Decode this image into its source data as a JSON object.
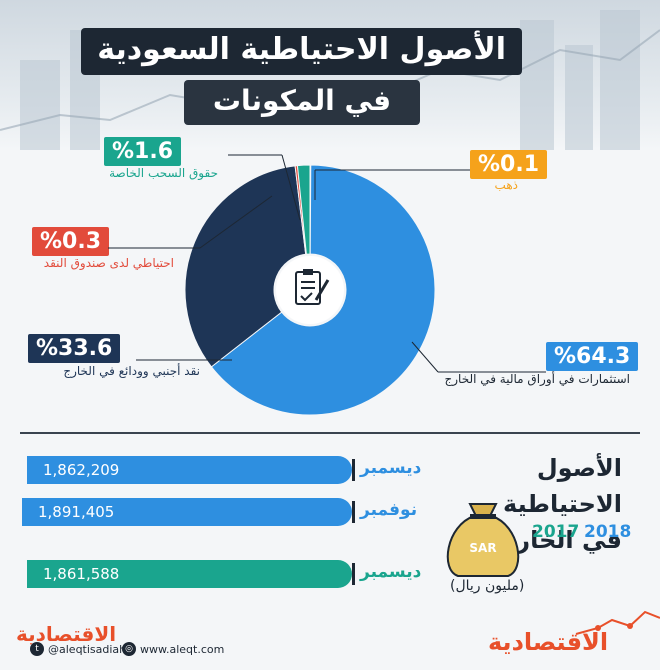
{
  "header": {
    "title": "الأصول الاحتياطية السعودية",
    "subtitle": "في المكونات"
  },
  "chart_data": [
    {
      "type": "pie",
      "title": "الأصول الاحتياطية السعودية",
      "subtitle": "في المكونات",
      "unit": "%",
      "slices": [
        {
          "label": "استثمارات في أوراق مالية في الخارج",
          "value": 64.3,
          "display": "%64.3",
          "color": "#2e8fe0"
        },
        {
          "label": "نقد أجنبي وودائع في الخارج",
          "value": 33.6,
          "display": "%33.6",
          "color": "#1e3556"
        },
        {
          "label": "احتياطي لدى صندوق النقد",
          "value": 0.3,
          "display": "%0.3",
          "color": "#e24b3b"
        },
        {
          "label": "حقوق السحب الخاصة",
          "value": 1.6,
          "display": "%1.6",
          "color": "#1aa58e"
        },
        {
          "label": "ذهب",
          "value": 0.1,
          "display": "%0.1",
          "color": "#f5a21b"
        }
      ]
    },
    {
      "type": "bar",
      "title": "الأصول الاحتياطية في الخارج",
      "unit": "(مليون ريال)",
      "legend": [
        {
          "year": "2018",
          "color": "#2e8fe0"
        },
        {
          "year": "2017",
          "color": "#1aa58e"
        }
      ],
      "bars": [
        {
          "month": "ديسمبر",
          "year": "2018",
          "value": 1862209,
          "display": "1,862,209",
          "color": "#2e8fe0"
        },
        {
          "month": "نوفمبر",
          "year": "2018",
          "value": 1891405,
          "display": "1,891,405",
          "color": "#2e8fe0"
        },
        {
          "month": "ديسمبر",
          "year": "2017",
          "value": 1861588,
          "display": "1,861,588",
          "color": "#1aa58e"
        }
      ]
    }
  ],
  "side": {
    "title_line1": "الأصول الاحتياطية",
    "title_line2": "في الخارج",
    "year_2018": "2018",
    "year_2017": "2017",
    "unit": "(مليون ريال)",
    "bag_label": "SAR"
  },
  "footer": {
    "brand_left": "الاقتصادية",
    "handle": "@aleqtisadiah",
    "website": "www.aleqt.com",
    "brand_right": "الاقتصادية"
  },
  "colors": {
    "dark": "#1d2733",
    "blue": "#2e8fe0",
    "teal": "#1aa58e",
    "red": "#e24b3b",
    "orange": "#f5a21b",
    "navy": "#1e3556",
    "brand": "#e8502a"
  }
}
